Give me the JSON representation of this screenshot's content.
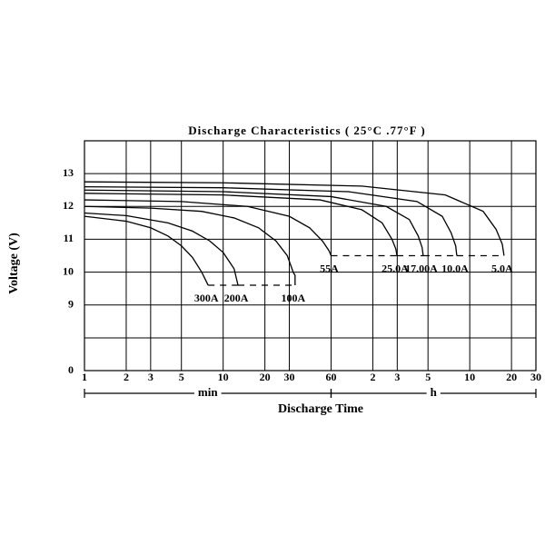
{
  "chart_data": {
    "type": "line",
    "title": "Discharge Characteristics ( 25°C .77°F )",
    "ylabel": "Voltage (V)",
    "xlabel": "Discharge Time",
    "xscale": "log",
    "xlim": [
      1,
      1800
    ],
    "xticks": [
      1,
      2,
      3,
      5,
      10,
      20,
      30,
      60,
      {
        "value": 120,
        "label": "2"
      },
      {
        "value": 180,
        "label": "3"
      },
      {
        "value": 300,
        "label": "5"
      },
      {
        "value": 600,
        "label": "10"
      },
      {
        "value": 1200,
        "label": "20"
      },
      {
        "value": 1800,
        "label": "30"
      }
    ],
    "x_segments": [
      {
        "label": "min",
        "from": 1,
        "to": 60
      },
      {
        "label": "h",
        "from": 60,
        "to": 1800
      }
    ],
    "ylim": [
      0,
      14
    ],
    "ybreak": [
      0,
      9
    ],
    "yticks": [
      0,
      9,
      10,
      11,
      12,
      13
    ],
    "grid": true,
    "color": "#000000",
    "series": [
      {
        "name": "300A",
        "x": [
          1,
          2,
          3,
          4,
          5,
          6,
          7,
          7.8
        ],
        "values": [
          11.7,
          11.55,
          11.35,
          11.1,
          10.8,
          10.45,
          10.0,
          9.6
        ]
      },
      {
        "name": "200A",
        "x": [
          1,
          2,
          4,
          6,
          8,
          10,
          12,
          12.8
        ],
        "values": [
          11.8,
          11.72,
          11.5,
          11.25,
          10.95,
          10.6,
          10.1,
          9.6
        ]
      },
      {
        "name": "100A",
        "x": [
          1,
          3,
          7,
          12,
          18,
          24,
          29,
          32,
          33,
          33
        ],
        "values": [
          12.0,
          11.95,
          11.85,
          11.65,
          11.35,
          10.95,
          10.5,
          10.0,
          9.9,
          9.6
        ]
      },
      {
        "name": "55A",
        "x": [
          1,
          5,
          15,
          30,
          42,
          52,
          58,
          60
        ],
        "values": [
          12.2,
          12.15,
          12.0,
          11.7,
          11.35,
          10.95,
          10.65,
          10.5
        ]
      },
      {
        "name": "25.0A",
        "x": [
          1,
          10,
          50,
          100,
          140,
          165,
          176,
          179
        ],
        "values": [
          12.4,
          12.35,
          12.2,
          11.9,
          11.5,
          11.0,
          10.7,
          10.5
        ]
      },
      {
        "name": "17.00A",
        "x": [
          1,
          10,
          60,
          150,
          220,
          255,
          272,
          277
        ],
        "values": [
          12.5,
          12.45,
          12.3,
          12.0,
          11.6,
          11.1,
          10.75,
          10.5
        ]
      },
      {
        "name": "10.0A",
        "x": [
          1,
          10,
          80,
          250,
          380,
          440,
          475,
          484
        ],
        "values": [
          12.6,
          12.57,
          12.45,
          12.15,
          11.7,
          11.2,
          10.8,
          10.5
        ]
      },
      {
        "name": "5.0A",
        "x": [
          1,
          10,
          100,
          400,
          750,
          930,
          1030,
          1060
        ],
        "values": [
          12.75,
          12.72,
          12.62,
          12.35,
          11.85,
          11.3,
          10.85,
          10.5
        ]
      }
    ]
  }
}
